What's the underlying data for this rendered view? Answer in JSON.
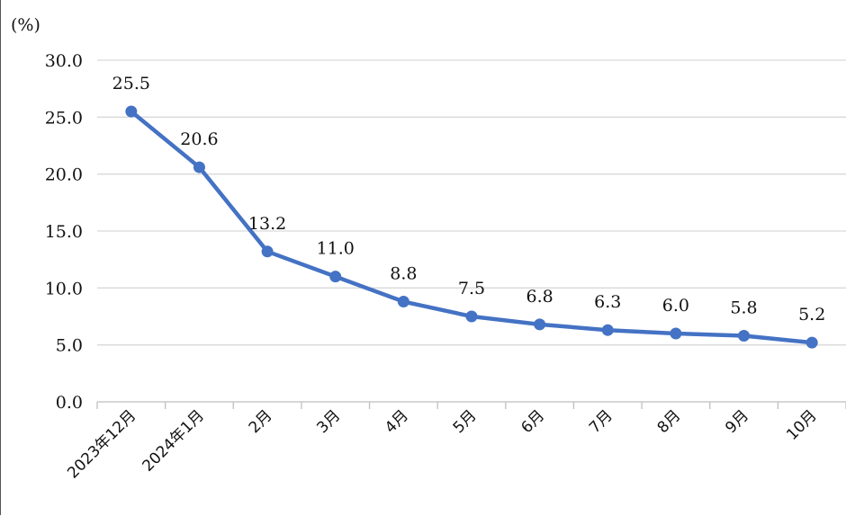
{
  "chart_data": {
    "type": "line",
    "ylabel": "(%)",
    "categories": [
      "2023年12月",
      "2024年1月",
      "2月",
      "3月",
      "4月",
      "5月",
      "6月",
      "7月",
      "8月",
      "9月",
      "10月"
    ],
    "series": [
      {
        "values": [
          25.5,
          20.6,
          13.2,
          11.0,
          8.8,
          7.5,
          6.8,
          6.3,
          6.0,
          5.8,
          5.2
        ],
        "labels": [
          "25.5",
          "20.6",
          "13.2",
          "11.0",
          "8.8",
          "7.5",
          "6.8",
          "6.3",
          "6.0",
          "5.8",
          "5.2"
        ],
        "color": "#4472C4"
      }
    ],
    "ylim": [
      0,
      30
    ],
    "yticks": [
      "0.0",
      "5.0",
      "10.0",
      "15.0",
      "20.0",
      "25.0",
      "30.0"
    ],
    "grid": true,
    "legend": "none"
  }
}
